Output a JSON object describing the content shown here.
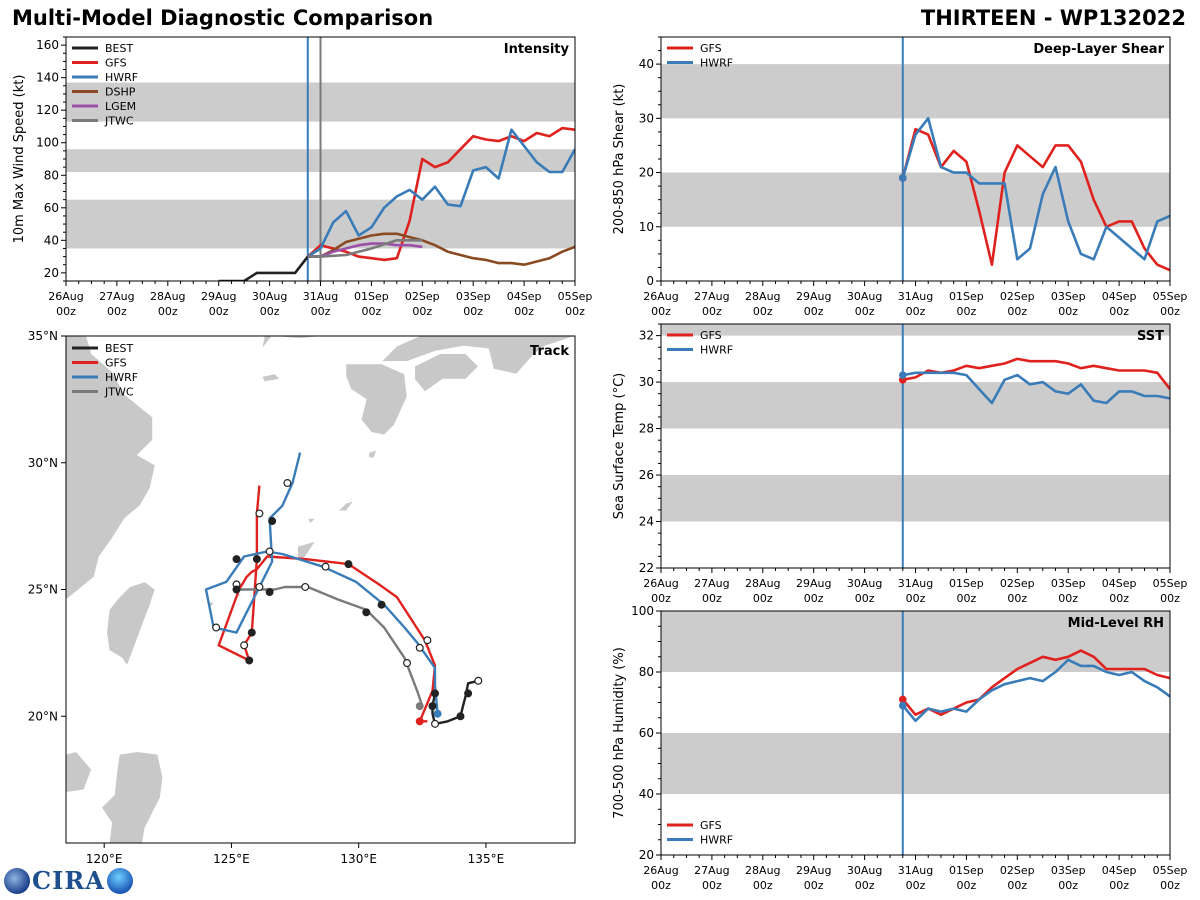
{
  "header": {
    "title": "Multi-Model Diagnostic Comparison",
    "storm": "THIRTEEN - WP132022"
  },
  "logo": {
    "text": "CIRA"
  },
  "colors": {
    "BEST": "#222222",
    "GFS": "#e0221f",
    "HWRF": "#3a7cb8",
    "DSHP": "#8a4a24",
    "LGEM": "#9b4fa6",
    "JTWC": "#7a7a7a",
    "band": "#cccccc",
    "land": "#c8c8c8"
  },
  "time_axis": {
    "days": [
      "26Aug",
      "27Aug",
      "28Aug",
      "29Aug",
      "30Aug",
      "31Aug",
      "01Sep",
      "02Sep",
      "03Sep",
      "04Sep",
      "05Sep"
    ],
    "hour": "00z"
  },
  "chart_data": [
    {
      "id": "intensity",
      "type": "line",
      "title": "Intensity",
      "ylabel": "10m Max Wind Speed (kt)",
      "xlim": [
        0,
        10
      ],
      "ylim": [
        15,
        165
      ],
      "yticks": [
        20,
        40,
        60,
        80,
        100,
        120,
        140,
        160
      ],
      "bands": [
        [
          35,
          65
        ],
        [
          82,
          96
        ],
        [
          113,
          137
        ]
      ],
      "vlines": [
        {
          "x": 4.75,
          "color": "#3a7cb8"
        },
        {
          "x": 5.0,
          "color": "#7a7a7a"
        }
      ],
      "legend": [
        "BEST",
        "GFS",
        "HWRF",
        "DSHP",
        "LGEM",
        "JTWC"
      ],
      "series": [
        {
          "name": "BEST",
          "x": [
            3.0,
            3.5,
            3.75,
            4.5,
            4.75,
            5.0
          ],
          "y": [
            15,
            15,
            20,
            20,
            30,
            30
          ]
        },
        {
          "name": "GFS",
          "x": [
            4.75,
            5.0,
            5.25,
            5.5,
            5.75,
            6.0,
            6.25,
            6.5,
            6.75,
            7.0,
            7.25,
            7.5,
            7.75,
            8.0,
            8.25,
            8.5,
            8.75,
            9.0,
            9.25,
            9.5,
            9.75,
            10.0
          ],
          "y": [
            30,
            37,
            35,
            33,
            30,
            29,
            28,
            29,
            52,
            90,
            85,
            88,
            96,
            104,
            102,
            101,
            104,
            101,
            106,
            104,
            109,
            108
          ]
        },
        {
          "name": "HWRF",
          "x": [
            4.75,
            5.0,
            5.25,
            5.5,
            5.75,
            6.0,
            6.25,
            6.5,
            6.75,
            7.0,
            7.25,
            7.5,
            7.75,
            8.0,
            8.25,
            8.5,
            8.75,
            9.0,
            9.25,
            9.5,
            9.75,
            10.0
          ],
          "y": [
            30,
            35,
            51,
            58,
            43,
            48,
            60,
            67,
            71,
            65,
            73,
            62,
            61,
            83,
            85,
            78,
            108,
            98,
            88,
            82,
            82,
            96
          ]
        },
        {
          "name": "DSHP",
          "x": [
            4.75,
            5.0,
            5.25,
            5.5,
            5.75,
            6.0,
            6.25,
            6.5,
            6.75,
            7.0,
            7.25,
            7.5,
            7.75,
            8.0,
            8.25,
            8.5,
            8.75,
            9.0,
            9.25,
            9.5,
            9.75,
            10.0
          ],
          "y": [
            30,
            30,
            34,
            39,
            41,
            43,
            44,
            44,
            42,
            40,
            37,
            33,
            31,
            29,
            28,
            26,
            26,
            25,
            27,
            29,
            33,
            36
          ]
        },
        {
          "name": "LGEM",
          "x": [
            4.75,
            5.0,
            5.25,
            5.5,
            5.75,
            6.0,
            6.25,
            6.5,
            6.75,
            7.0
          ],
          "y": [
            30,
            30,
            33,
            35,
            37,
            38,
            38,
            37,
            37,
            36
          ]
        },
        {
          "name": "JTWC",
          "x": [
            4.75,
            5.0,
            5.5,
            6.0,
            6.5,
            7.0
          ],
          "y": [
            30,
            30,
            31,
            35,
            40,
            40
          ]
        }
      ]
    },
    {
      "id": "shear",
      "type": "line",
      "title": "Deep-Layer Shear",
      "ylabel": "200-850 hPa Shear (kt)",
      "xlim": [
        0,
        10
      ],
      "ylim": [
        0,
        45
      ],
      "yticks": [
        0,
        10,
        20,
        30,
        40
      ],
      "bands": [
        [
          10,
          20
        ],
        [
          30,
          40
        ]
      ],
      "vlines": [
        {
          "x": 4.75,
          "color": "#3a7cb8"
        }
      ],
      "legend": [
        "GFS",
        "HWRF"
      ],
      "series": [
        {
          "name": "GFS",
          "x": [
            4.75,
            5.0,
            5.25,
            5.5,
            5.75,
            6.0,
            6.25,
            6.5,
            6.75,
            7.0,
            7.25,
            7.5,
            7.75,
            8.0,
            8.25,
            8.5,
            8.75,
            9.0,
            9.25,
            9.5,
            9.75,
            10.0
          ],
          "y": [
            19,
            28,
            27,
            21,
            24,
            22,
            13,
            3,
            20,
            25,
            23,
            21,
            25,
            25,
            22,
            15,
            10,
            11,
            11,
            6,
            3,
            2
          ]
        },
        {
          "name": "HWRF",
          "x": [
            4.75,
            5.0,
            5.25,
            5.5,
            5.75,
            6.0,
            6.25,
            6.5,
            6.75,
            7.0,
            7.25,
            7.5,
            7.75,
            8.0,
            8.25,
            8.5,
            8.75,
            9.5,
            9.75,
            10.0
          ],
          "y": [
            19,
            27,
            30,
            21,
            20,
            20,
            18,
            18,
            18,
            4,
            6,
            16,
            21,
            11,
            5,
            4,
            10,
            4,
            11,
            12
          ]
        }
      ]
    },
    {
      "id": "sst",
      "type": "line",
      "title": "SST",
      "ylabel": "Sea Surface Temp (°C)",
      "xlim": [
        0,
        10
      ],
      "ylim": [
        22,
        32.5
      ],
      "yticks": [
        22,
        24,
        26,
        28,
        30,
        32
      ],
      "bands": [
        [
          24,
          26
        ],
        [
          28,
          30
        ],
        [
          32,
          32.5
        ]
      ],
      "vlines": [
        {
          "x": 4.75,
          "color": "#3a7cb8"
        }
      ],
      "legend": [
        "GFS",
        "HWRF"
      ],
      "series": [
        {
          "name": "GFS",
          "x": [
            4.75,
            5.0,
            5.25,
            5.5,
            5.75,
            6.0,
            6.25,
            6.5,
            6.75,
            7.0,
            7.25,
            7.5,
            7.75,
            8.0,
            8.25,
            8.5,
            8.75,
            9.0,
            9.25,
            9.5,
            9.75,
            10.0
          ],
          "y": [
            30.1,
            30.2,
            30.5,
            30.4,
            30.5,
            30.7,
            30.6,
            30.7,
            30.8,
            31.0,
            30.9,
            30.9,
            30.9,
            30.8,
            30.6,
            30.7,
            30.6,
            30.5,
            30.5,
            30.5,
            30.4,
            29.7
          ]
        },
        {
          "name": "HWRF",
          "x": [
            4.75,
            5.0,
            5.25,
            5.5,
            5.75,
            6.0,
            6.25,
            6.5,
            6.75,
            7.0,
            7.25,
            7.5,
            7.75,
            8.0,
            8.25,
            8.5,
            8.75,
            9.0,
            9.25,
            9.5,
            9.75,
            10.0
          ],
          "y": [
            30.3,
            30.4,
            30.4,
            30.4,
            30.4,
            30.3,
            29.7,
            29.1,
            30.1,
            30.3,
            29.9,
            30.0,
            29.6,
            29.5,
            29.9,
            29.2,
            29.1,
            29.6,
            29.6,
            29.4,
            29.4,
            29.3
          ]
        }
      ]
    },
    {
      "id": "rh",
      "type": "line",
      "title": "Mid-Level RH",
      "ylabel": "700-500 hPa Humidity (%)",
      "xlim": [
        0,
        10
      ],
      "ylim": [
        20,
        100
      ],
      "yticks": [
        20,
        40,
        60,
        80,
        100
      ],
      "bands": [
        [
          40,
          60
        ],
        [
          80,
          100
        ]
      ],
      "vlines": [
        {
          "x": 4.75,
          "color": "#3a7cb8"
        }
      ],
      "legend": [
        "GFS",
        "HWRF"
      ],
      "series": [
        {
          "name": "GFS",
          "x": [
            4.75,
            5.0,
            5.25,
            5.5,
            5.75,
            6.0,
            6.25,
            6.5,
            6.75,
            7.0,
            7.25,
            7.5,
            7.75,
            8.0,
            8.25,
            8.5,
            8.75,
            9.0,
            9.25,
            9.5,
            9.75,
            10.0
          ],
          "y": [
            71,
            66,
            68,
            66,
            68,
            70,
            71,
            75,
            78,
            81,
            83,
            85,
            84,
            85,
            87,
            85,
            81,
            81,
            81,
            81,
            79,
            78
          ]
        },
        {
          "name": "HWRF",
          "x": [
            4.75,
            5.0,
            5.25,
            5.5,
            5.75,
            6.0,
            6.25,
            6.5,
            6.75,
            7.0,
            7.25,
            7.5,
            7.75,
            8.0,
            8.25,
            8.5,
            8.75,
            9.0,
            9.25,
            9.5,
            9.75,
            10.0
          ],
          "y": [
            69,
            64,
            68,
            67,
            68,
            67,
            71,
            74,
            76,
            77,
            78,
            77,
            80,
            84,
            82,
            82,
            80,
            79,
            80,
            77,
            75,
            72
          ]
        }
      ]
    },
    {
      "id": "track",
      "type": "map-track",
      "title": "Track",
      "xlim": [
        118.5,
        138.5
      ],
      "ylim": [
        15,
        35
      ],
      "xticks": [
        120,
        125,
        130,
        135
      ],
      "yticks": [
        20,
        25,
        30,
        35
      ],
      "xtick_labels": [
        "120°E",
        "125°E",
        "130°E",
        "135°E"
      ],
      "ytick_labels": [
        "20°N",
        "25°N",
        "30°N",
        "35°N"
      ],
      "legend": [
        "BEST",
        "GFS",
        "HWRF",
        "JTWC"
      ],
      "series": [
        {
          "name": "BEST",
          "lon": [
            134.7,
            134.3,
            134.2,
            134.1,
            134.0,
            133.5,
            133.0,
            132.9,
            132.9,
            133.0
          ],
          "lat": [
            21.4,
            21.3,
            20.8,
            20.4,
            20.0,
            19.8,
            19.7,
            20.1,
            20.4,
            20.9
          ]
        },
        {
          "name": "GFS",
          "lon": [
            132.7,
            132.4,
            132.9,
            133.0,
            132.6,
            131.5,
            130.8,
            129.6,
            127.9,
            126.4,
            126.0,
            125.8,
            125.6,
            125.3,
            124.5,
            125.7,
            125.5,
            125.8,
            126.0,
            126.0,
            126.1
          ],
          "lat": [
            19.8,
            19.8,
            21.0,
            22.0,
            23.0,
            24.7,
            25.2,
            26.0,
            26.2,
            26.3,
            25.8,
            25.7,
            25.5,
            25.0,
            22.8,
            22.2,
            22.8,
            23.3,
            26.2,
            28.0,
            29.1
          ]
        },
        {
          "name": "HWRF",
          "lon": [
            133.1,
            133.0,
            133.0,
            132.3,
            131.8,
            131.0,
            129.9,
            128.6,
            127.0,
            126.4,
            125.5,
            124.8,
            124.0,
            124.2,
            124.3,
            125.2,
            126.1,
            126.6,
            126.5,
            127.0,
            127.4,
            127.7
          ],
          "lat": [
            20.1,
            21.2,
            21.9,
            22.9,
            23.5,
            24.4,
            25.3,
            25.9,
            26.4,
            26.5,
            26.3,
            25.3,
            25.0,
            24.0,
            23.5,
            23.3,
            25.1,
            26.1,
            27.8,
            28.3,
            29.2,
            30.4
          ]
        },
        {
          "name": "JTWC",
          "lon": [
            132.5,
            132.3,
            131.8,
            131.0,
            130.3,
            129.2,
            128.0,
            127.1,
            126.7,
            126.3,
            125.5,
            125.2,
            125.1
          ],
          "lat": [
            20.4,
            21.0,
            22.3,
            23.5,
            24.2,
            24.6,
            25.1,
            25.1,
            25.0,
            25.0,
            25.0,
            25.0,
            25.2
          ]
        }
      ],
      "markers": [
        {
          "lon": 134.7,
          "lat": 21.4,
          "fill": "open"
        },
        {
          "lon": 134.3,
          "lat": 20.9,
          "fill": "filled"
        },
        {
          "lon": 134.0,
          "lat": 20.0,
          "fill": "filled"
        },
        {
          "lon": 133.0,
          "lat": 19.7,
          "fill": "open"
        },
        {
          "lon": 132.9,
          "lat": 20.4,
          "fill": "filled"
        },
        {
          "lon": 133.0,
          "lat": 20.9,
          "fill": "filled"
        },
        {
          "lon": 132.7,
          "lat": 23.0,
          "fill": "open"
        },
        {
          "lon": 132.4,
          "lat": 22.7,
          "fill": "open"
        },
        {
          "lon": 131.9,
          "lat": 22.1,
          "fill": "open"
        },
        {
          "lon": 130.9,
          "lat": 24.4,
          "fill": "filled"
        },
        {
          "lon": 130.3,
          "lat": 24.1,
          "fill": "filled"
        },
        {
          "lon": 129.6,
          "lat": 26.0,
          "fill": "filled"
        },
        {
          "lon": 128.7,
          "lat": 25.9,
          "fill": "open"
        },
        {
          "lon": 127.9,
          "lat": 25.1,
          "fill": "open"
        },
        {
          "lon": 126.5,
          "lat": 26.5,
          "fill": "open"
        },
        {
          "lon": 126.6,
          "lat": 27.7,
          "fill": "filled"
        },
        {
          "lon": 126.0,
          "lat": 26.2,
          "fill": "filled"
        },
        {
          "lon": 125.2,
          "lat": 26.2,
          "fill": "filled"
        },
        {
          "lon": 126.1,
          "lat": 28.0,
          "fill": "open"
        },
        {
          "lon": 127.2,
          "lat": 29.2,
          "fill": "open"
        },
        {
          "lon": 126.1,
          "lat": 25.1,
          "fill": "open"
        },
        {
          "lon": 126.5,
          "lat": 24.9,
          "fill": "filled"
        },
        {
          "lon": 125.2,
          "lat": 25.2,
          "fill": "open"
        },
        {
          "lon": 125.2,
          "lat": 25.0,
          "fill": "filled"
        },
        {
          "lon": 124.4,
          "lat": 23.5,
          "fill": "open"
        },
        {
          "lon": 125.8,
          "lat": 23.3,
          "fill": "filled"
        },
        {
          "lon": 125.5,
          "lat": 22.8,
          "fill": "open"
        },
        {
          "lon": 125.7,
          "lat": 22.2,
          "fill": "filled"
        },
        {
          "lon": 132.4,
          "lat": 19.8,
          "fill": "red"
        },
        {
          "lon": 133.1,
          "lat": 20.1,
          "fill": "blue"
        },
        {
          "lon": 132.4,
          "lat": 20.4,
          "fill": "gray"
        }
      ]
    }
  ]
}
